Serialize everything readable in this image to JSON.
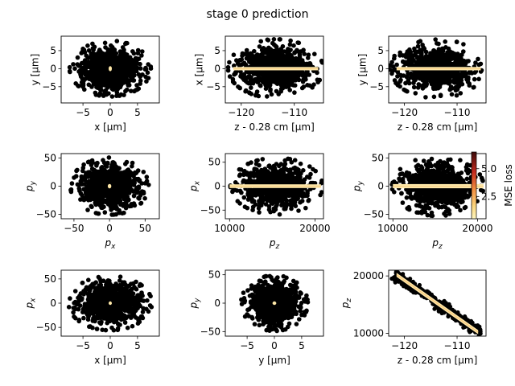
{
  "figure": {
    "title": "stage 0 prediction"
  },
  "colorbar": {
    "label": "MSE loss",
    "range": [
      0.5,
      6.5
    ],
    "ticks": [
      {
        "v": 2.5,
        "t": "2.5"
      },
      {
        "v": 5.0,
        "t": "5.0"
      }
    ]
  },
  "chart_data": [
    {
      "type": "scatter",
      "id": "xy",
      "xlabel": "x [μm]",
      "ylabel": "y [μm]",
      "xlim": [
        -9,
        9
      ],
      "ylim": [
        -9.5,
        9
      ],
      "xticks": [
        {
          "v": -5,
          "t": "−5"
        },
        {
          "v": 0,
          "t": "0"
        },
        {
          "v": 5,
          "t": "5"
        }
      ],
      "yticks": [
        {
          "v": -5,
          "t": "−5"
        },
        {
          "v": 0,
          "t": "0"
        },
        {
          "v": 5,
          "t": "5"
        }
      ],
      "cloud": {
        "shape": "ellipse",
        "cx": 0,
        "cy": 0,
        "rx": 7.3,
        "ry": 7.6
      },
      "loss_region": {
        "shape": "ellipse",
        "cx": 0,
        "cy": 0,
        "rx": 0.3,
        "ry": 0.7
      }
    },
    {
      "type": "scatter",
      "id": "zx",
      "xlabel": "z - 0.28 cm [μm]",
      "ylabel": "x [μm]",
      "xlim": [
        -123,
        -104.5
      ],
      "ylim": [
        -9.5,
        9
      ],
      "xticks": [
        {
          "v": -120,
          "t": "−120"
        },
        {
          "v": -110,
          "t": "−110"
        }
      ],
      "yticks": [
        {
          "v": -5,
          "t": "−5"
        },
        {
          "v": 0,
          "t": "0"
        },
        {
          "v": 5,
          "t": "5"
        }
      ],
      "cloud": {
        "shape": "ellipse",
        "cx": -113.5,
        "cy": 0,
        "rx": 8.8,
        "ry": 8.0
      },
      "loss_region": {
        "shape": "band",
        "x0": -121.5,
        "x1": -105.5,
        "cy": 0,
        "half": 0.35
      }
    },
    {
      "type": "scatter",
      "id": "zy",
      "xlabel": "z - 0.28 cm [μm]",
      "ylabel": "y [μm]",
      "xlim": [
        -123,
        -104.5
      ],
      "ylim": [
        -9.5,
        9
      ],
      "xticks": [
        {
          "v": -120,
          "t": "−120"
        },
        {
          "v": -110,
          "t": "−110"
        }
      ],
      "yticks": [
        {
          "v": -5,
          "t": "−5"
        },
        {
          "v": 0,
          "t": "0"
        },
        {
          "v": 5,
          "t": "5"
        }
      ],
      "cloud": {
        "shape": "ellipse",
        "cx": -113.8,
        "cy": 0,
        "rx": 8.8,
        "ry": 8.0
      },
      "loss_region": {
        "shape": "band",
        "x0": -121.5,
        "x1": -105.5,
        "cy": 0,
        "half": 0.35
      }
    },
    {
      "type": "scatter",
      "id": "pxpy",
      "xlabel": "p_x",
      "ylabel": "p_y",
      "xlim": [
        -68,
        70
      ],
      "ylim": [
        -58,
        58
      ],
      "xticks": [
        {
          "v": -50,
          "t": "−50"
        },
        {
          "v": 0,
          "t": "0"
        },
        {
          "v": 50,
          "t": "50"
        }
      ],
      "yticks": [
        {
          "v": -50,
          "t": "−50"
        },
        {
          "v": 0,
          "t": "0"
        },
        {
          "v": 50,
          "t": "50"
        }
      ],
      "cloud": {
        "shape": "ellipse",
        "cx": 0,
        "cy": 0,
        "rx": 54,
        "ry": 50
      },
      "loss_region": {
        "shape": "ellipse",
        "cx": 0,
        "cy": 0,
        "rx": 2.5,
        "ry": 4
      }
    },
    {
      "type": "scatter",
      "id": "pzpx",
      "xlabel": "p_z",
      "ylabel": "p_x",
      "xlim": [
        9500,
        21000
      ],
      "ylim": [
        -68,
        68
      ],
      "xticks": [
        {
          "v": 10000,
          "t": "10000"
        },
        {
          "v": 20000,
          "t": "20000"
        }
      ],
      "yticks": [
        {
          "v": -50,
          "t": "−50"
        },
        {
          "v": 0,
          "t": "0"
        },
        {
          "v": 50,
          "t": "50"
        }
      ],
      "cloud": {
        "shape": "ellipse",
        "cx": 15500,
        "cy": 0,
        "rx": 5300,
        "ry": 58
      },
      "loss_region": {
        "shape": "band",
        "x0": 10000,
        "x1": 20700,
        "cy": 0,
        "half": 3
      }
    },
    {
      "type": "scatter",
      "id": "pzpy",
      "xlabel": "p_z",
      "ylabel": "p_y",
      "xlim": [
        9500,
        21000
      ],
      "ylim": [
        -58,
        58
      ],
      "xticks": [
        {
          "v": 10000,
          "t": "10000"
        },
        {
          "v": 20000,
          "t": "20000"
        }
      ],
      "yticks": [
        {
          "v": -50,
          "t": "−50"
        },
        {
          "v": 0,
          "t": "0"
        },
        {
          "v": 50,
          "t": "50"
        }
      ],
      "cloud": {
        "shape": "ellipse",
        "cx": 15300,
        "cy": 0,
        "rx": 5300,
        "ry": 52
      },
      "loss_region": {
        "shape": "band",
        "x0": 10000,
        "x1": 20700,
        "cy": 0,
        "half": 3
      }
    },
    {
      "type": "scatter",
      "id": "xpx",
      "xlabel": "x [μm]",
      "ylabel": "p_x",
      "xlim": [
        -9,
        9
      ],
      "ylim": [
        -68,
        68
      ],
      "xticks": [
        {
          "v": -5,
          "t": "−5"
        },
        {
          "v": 0,
          "t": "0"
        },
        {
          "v": 5,
          "t": "5"
        }
      ],
      "yticks": [
        {
          "v": -50,
          "t": "−50"
        },
        {
          "v": 0,
          "t": "0"
        },
        {
          "v": 50,
          "t": "50"
        }
      ],
      "cloud": {
        "shape": "ellipse",
        "cx": 0,
        "cy": 0,
        "rx": 7.5,
        "ry": 55
      },
      "loss_region": {
        "shape": "ellipse",
        "cx": 0,
        "cy": 0,
        "rx": 0.3,
        "ry": 3
      }
    },
    {
      "type": "scatter",
      "id": "ypy",
      "xlabel": "y [μm]",
      "ylabel": "p_y",
      "xlim": [
        -9,
        9
      ],
      "ylim": [
        -58,
        58
      ],
      "xticks": [
        {
          "v": -5,
          "t": "−5"
        },
        {
          "v": 0,
          "t": "0"
        },
        {
          "v": 5,
          "t": "5"
        }
      ],
      "yticks": [
        {
          "v": -50,
          "t": "−50"
        },
        {
          "v": 0,
          "t": "0"
        },
        {
          "v": 50,
          "t": "50"
        }
      ],
      "cloud": {
        "shape": "ellipse",
        "cx": 0,
        "cy": 0,
        "rx": 6.0,
        "ry": 48
      },
      "loss_region": {
        "shape": "ellipse",
        "cx": 0,
        "cy": 0,
        "rx": 0.35,
        "ry": 3
      }
    },
    {
      "type": "scatter",
      "id": "zpz",
      "xlabel": "z - 0.28 cm [μm]",
      "ylabel": "p_z",
      "xlim": [
        -123,
        -104.5
      ],
      "ylim": [
        9500,
        21000
      ],
      "xticks": [
        {
          "v": -120,
          "t": "−120"
        },
        {
          "v": -110,
          "t": "−110"
        }
      ],
      "yticks": [
        {
          "v": 10000,
          "t": "10000"
        },
        {
          "v": 20000,
          "t": "20000"
        }
      ],
      "cloud": {
        "shape": "diag",
        "x0": -122,
        "y0": 20400,
        "x1": -105.5,
        "y1": 10000,
        "width": 1000
      },
      "loss_region": {
        "shape": "diag",
        "x0": -121.5,
        "y0": 20200,
        "x1": -106,
        "y1": 10200,
        "width": 700
      }
    }
  ]
}
